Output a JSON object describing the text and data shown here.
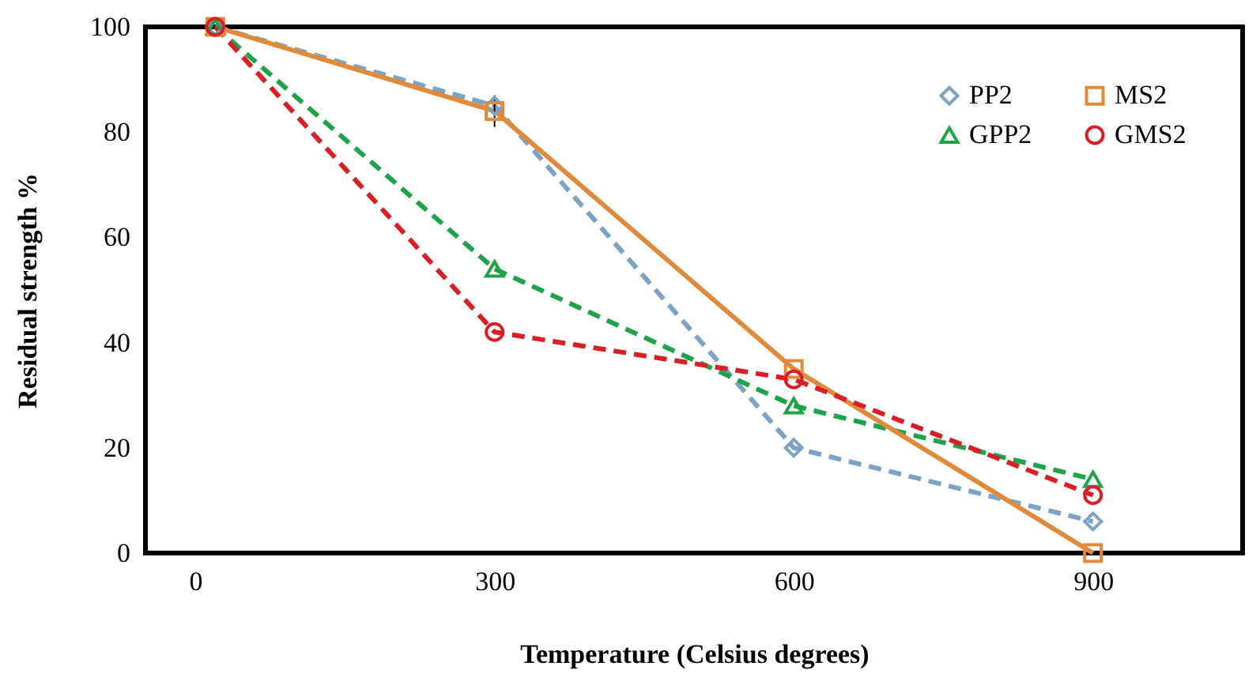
{
  "chart_data": {
    "type": "line",
    "xlabel": "Temperature (Celsius degrees)",
    "ylabel": "Residual strength %",
    "x": [
      20,
      300,
      600,
      900
    ],
    "xlim": [
      -50,
      1050
    ],
    "xticks": [
      0,
      300,
      600,
      900
    ],
    "ylim": [
      0,
      100
    ],
    "yticks": [
      0,
      20,
      40,
      60,
      80,
      100
    ],
    "grid": false,
    "legend": "top right",
    "series": [
      {
        "name": "PP2",
        "color": "#7ba3c8",
        "values": [
          100,
          85,
          20,
          6
        ],
        "marker": "diamond",
        "line_style": "dashed"
      },
      {
        "name": "GPP2",
        "color": "#1fa34a",
        "values": [
          100,
          54,
          28,
          14
        ],
        "marker": "triangle",
        "line_style": "dashed"
      },
      {
        "name": "MS2",
        "color": "#e08a3c",
        "values": [
          100,
          84,
          35,
          0
        ],
        "marker": "square",
        "line_style": "solid",
        "errors": [
          null,
          3,
          null,
          null
        ]
      },
      {
        "name": "GMS2",
        "color": "#d91f26",
        "values": [
          100,
          42,
          33,
          11
        ],
        "marker": "circle",
        "line_style": "dashed"
      }
    ]
  }
}
